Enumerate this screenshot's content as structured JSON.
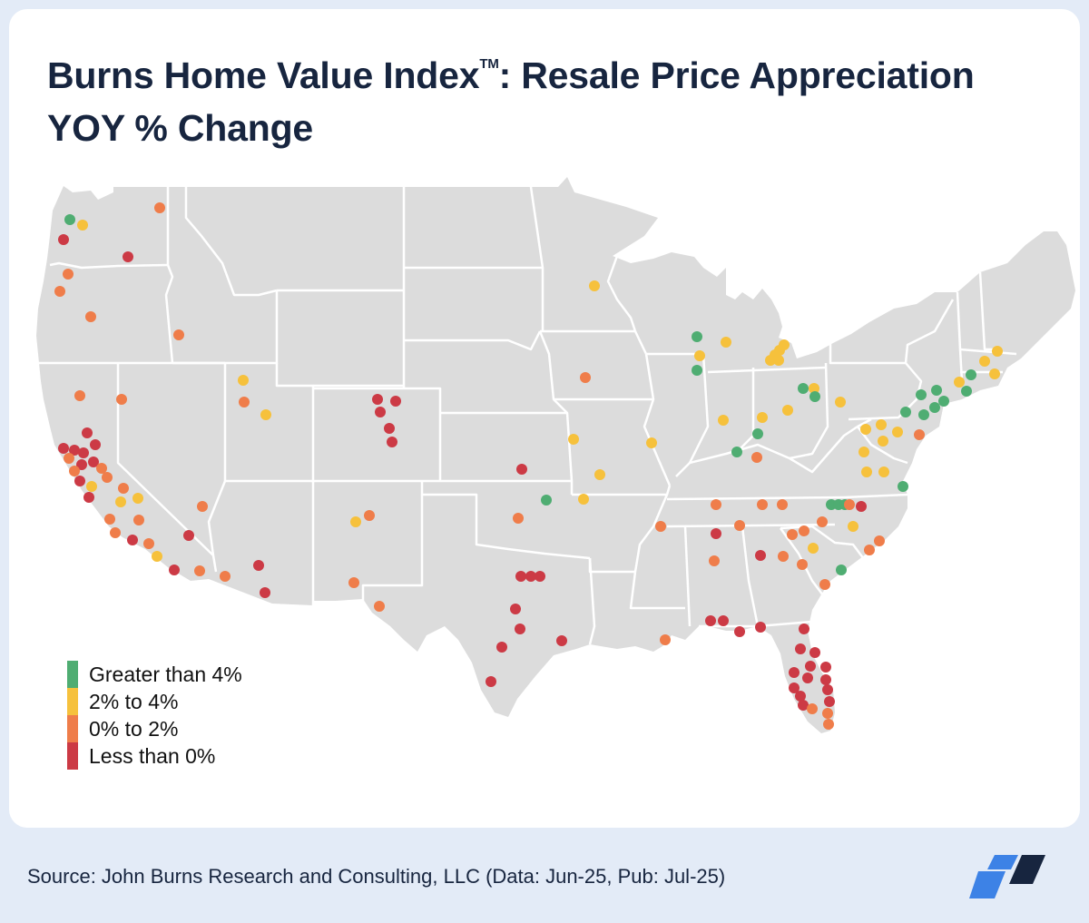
{
  "title": {
    "line1_pre": "Burns Home Value Index",
    "tm": "TM",
    "line1_post": ": Resale Price Appreciation",
    "line2": "YOY % Change"
  },
  "legend": [
    {
      "label": "Greater than 4%",
      "color": "#4fad72",
      "key": "g"
    },
    {
      "label": "2% to 4%",
      "color": "#f6c13c",
      "key": "y"
    },
    {
      "label": "0% to 2%",
      "color": "#ef7d4a",
      "key": "o"
    },
    {
      "label": "Less than 0%",
      "color": "#cc3a45",
      "key": "r"
    }
  ],
  "source": "Source: John Burns Research and Consulting, LLC (Data: Jun-25, Pub: Jul-25)",
  "colors": {
    "background": "#e3ebf7",
    "title": "#17253f",
    "land": "#dcdcdc",
    "borders": "#ffffff",
    "logo_light": "#3d82e6",
    "logo_dark": "#17253f"
  }
}
